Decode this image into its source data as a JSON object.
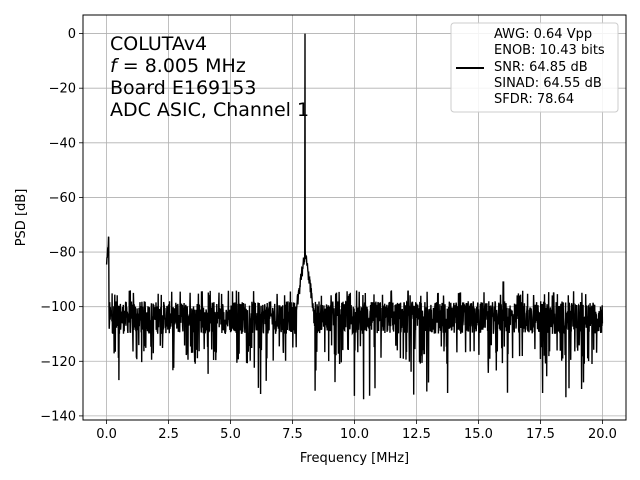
{
  "chart_data": {
    "type": "line",
    "annotation_lines": [
      "COLUTAv4",
      "f = 8.005 MHz",
      "Board E169153",
      "ADC ASIC, Channel  1"
    ],
    "annotation_f_symbol": "f",
    "annotation_f_rest": " = 8.005 MHz",
    "xlabel": "Frequency [MHz]",
    "ylabel": "PSD [dB]",
    "xlim": [
      -0.95,
      20.95
    ],
    "ylim": [
      -141.5,
      6.8
    ],
    "xticks": [
      0.0,
      2.5,
      5.0,
      7.5,
      10.0,
      12.5,
      15.0,
      17.5,
      20.0
    ],
    "xtick_labels": [
      "0.0",
      "2.5",
      "5.0",
      "7.5",
      "10.0",
      "12.5",
      "15.0",
      "17.5",
      "20.0"
    ],
    "yticks": [
      0,
      -20,
      -40,
      -60,
      -80,
      -100,
      -120,
      -140
    ],
    "ytick_labels": [
      "0",
      "−20",
      "−40",
      "−60",
      "−80",
      "−100",
      "−120",
      "−140"
    ],
    "grid": true,
    "legend_position": "top-right",
    "legend_lines": [
      "AWG: 0.64 Vpp",
      "ENOB: 10.43 bits",
      "SNR: 64.85 dB",
      "SINAD: 64.55 dB",
      "SFDR: 78.64"
    ],
    "line_color": "#000000",
    "series": [
      {
        "x_range": [
          0.0,
          20.0
        ],
        "n_points": 2048,
        "noise_floor_mean_db": -104,
        "noise_floor_span_db": [
          -121,
          -96
        ],
        "noise_dips_min_db": -134,
        "dc_peak": {
          "x": 0.0,
          "y": -85
        },
        "signal_peak": {
          "x": 8.005,
          "y": 0.0
        },
        "signal_skirt_level_db": -80,
        "spurs": [
          {
            "x": 16.0,
            "y": -91
          }
        ]
      }
    ]
  }
}
